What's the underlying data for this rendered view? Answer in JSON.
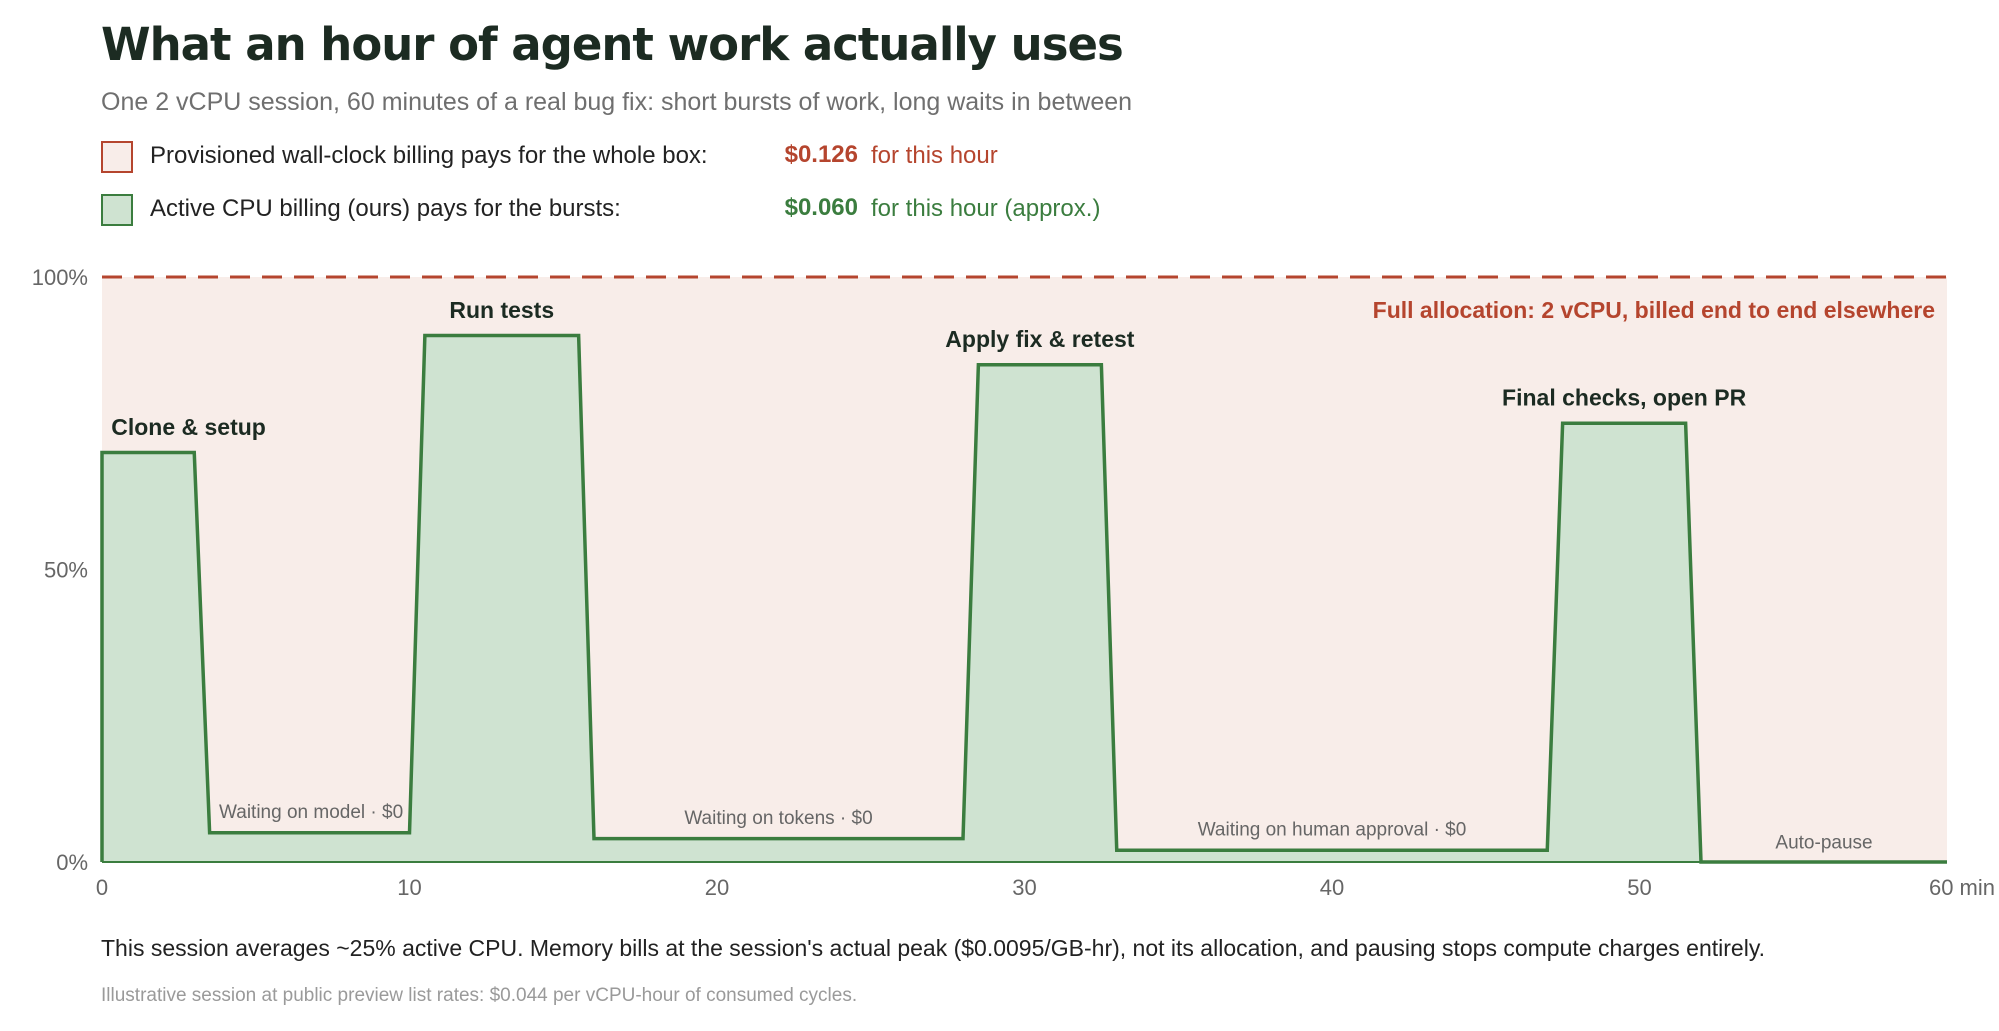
{
  "header": {
    "title": "What an hour of agent work actually uses",
    "subtitle": "One 2 vCPU session, 60 minutes of a real bug fix: short bursts of work, long waits in between"
  },
  "legend": [
    {
      "label": "Provisioned wall-clock billing pays for the whole box:",
      "price": "$0.126",
      "note": "for this hour",
      "color": "#b5452e",
      "fill": "#f8ede9"
    },
    {
      "label": "Active CPU billing (ours) pays for the bursts:",
      "price": "$0.060",
      "note": "for this hour (approx.)",
      "color": "#3b7d3f",
      "fill": "#cfe3d1"
    }
  ],
  "chart_data": {
    "type": "area",
    "x_unit": "min",
    "y_unit": "%",
    "xlim": [
      0,
      60
    ],
    "ylim": [
      0,
      100
    ],
    "x_ticks": [
      0,
      10,
      20,
      30,
      40,
      50,
      60
    ],
    "x_tick_labels": [
      "0",
      "10",
      "20",
      "30",
      "40",
      "50",
      "60 min"
    ],
    "y_ticks": [
      0,
      50,
      100
    ],
    "y_tick_labels": [
      "0%",
      "50%",
      "100%"
    ],
    "grid": false,
    "allocation": {
      "value": 100,
      "label": "Full allocation: 2 vCPU, billed end to end elsewhere",
      "color": "#b5452e",
      "fill": "#f8ede9"
    },
    "series": [
      {
        "color": "#3b7d3f",
        "fill": "#cfe3d1",
        "x": [
          0,
          3,
          3.5,
          10,
          10.5,
          15.5,
          16,
          28,
          28.5,
          32.5,
          33,
          47,
          47.5,
          51.5,
          52,
          60
        ],
        "y": [
          70,
          70,
          5,
          5,
          90,
          90,
          4,
          4,
          85,
          85,
          2,
          2,
          75,
          75,
          0,
          0
        ]
      }
    ],
    "annotations": [
      {
        "text": "Clone & setup",
        "x": 0.3,
        "y": 73,
        "anchor": "start",
        "style": "burst"
      },
      {
        "text": "Run tests",
        "x": 13,
        "y": 93,
        "anchor": "middle",
        "style": "burst"
      },
      {
        "text": "Apply fix & retest",
        "x": 30.5,
        "y": 88,
        "anchor": "middle",
        "style": "burst"
      },
      {
        "text": "Final checks, open PR",
        "x": 49.5,
        "y": 78,
        "anchor": "middle",
        "style": "burst"
      },
      {
        "text": "Waiting on model · $0",
        "x": 6.8,
        "y": 7.5,
        "anchor": "middle",
        "style": "wait"
      },
      {
        "text": "Waiting on tokens · $0",
        "x": 22,
        "y": 6.5,
        "anchor": "middle",
        "style": "wait"
      },
      {
        "text": "Waiting on human approval · $0",
        "x": 40,
        "y": 4.5,
        "anchor": "middle",
        "style": "wait"
      },
      {
        "text": "Auto-pause",
        "x": 56,
        "y": 2.3,
        "anchor": "middle",
        "style": "wait"
      }
    ]
  },
  "footnote": "This session averages ~25% active CPU. Memory bills at the session's actual peak ($0.0095/GB-hr), not its allocation, and pausing stops compute charges entirely.",
  "source": "Illustrative session at public preview list rates: $0.044 per vCPU-hour of consumed cycles."
}
